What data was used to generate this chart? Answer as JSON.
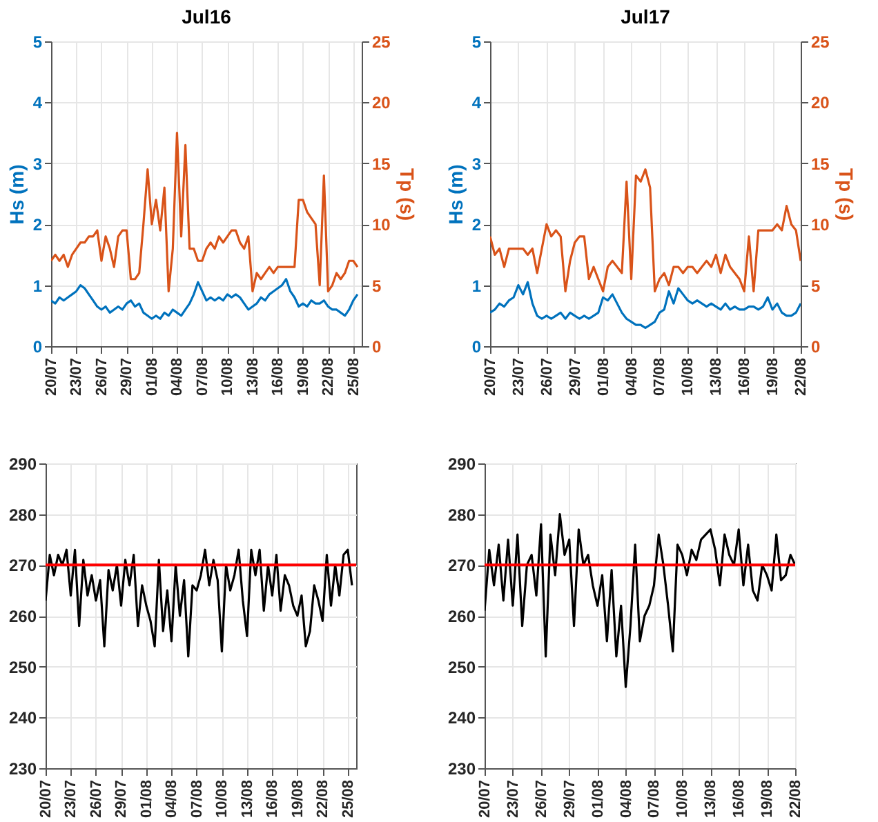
{
  "chart_data": [
    {
      "type": "line",
      "title": "Jul16",
      "ylabel": "Hs (m)",
      "y2label": "Tp (s)",
      "grid": true,
      "x": [
        "--07-20T00:00",
        "--07-20T12:00",
        "--07-21T00:00",
        "--07-21T12:00",
        "--07-22T00:00",
        "--07-22T12:00",
        "--07-23T00:00",
        "--07-23T12:00",
        "--07-24T00:00",
        "--07-24T12:00",
        "--07-25T00:00",
        "--07-25T12:00",
        "--07-26T00:00",
        "--07-26T12:00",
        "--07-27T00:00",
        "--07-27T12:00",
        "--07-28T00:00",
        "--07-28T12:00",
        "--07-29T00:00",
        "--07-29T12:00",
        "--07-30T00:00",
        "--07-30T12:00",
        "--07-31T00:00",
        "--07-31T12:00",
        "--08-01T00:00",
        "--08-01T12:00",
        "--08-02T00:00",
        "--08-02T12:00",
        "--08-03T00:00",
        "--08-03T12:00",
        "--08-04T00:00",
        "--08-04T12:00",
        "--08-05T00:00",
        "--08-05T12:00",
        "--08-06T00:00",
        "--08-06T12:00",
        "--08-07T00:00",
        "--08-07T12:00",
        "--08-08T00:00",
        "--08-08T12:00",
        "--08-09T00:00",
        "--08-09T12:00",
        "--08-10T00:00",
        "--08-10T12:00",
        "--08-11T00:00",
        "--08-11T12:00",
        "--08-12T00:00",
        "--08-12T12:00",
        "--08-13T00:00",
        "--08-13T12:00",
        "--08-14T00:00",
        "--08-14T12:00",
        "--08-15T00:00",
        "--08-15T12:00",
        "--08-16T00:00",
        "--08-16T12:00",
        "--08-17T00:00",
        "--08-17T12:00",
        "--08-18T00:00",
        "--08-18T12:00",
        "--08-19T00:00",
        "--08-19T12:00",
        "--08-20T00:00",
        "--08-20T12:00",
        "--08-21T00:00",
        "--08-21T12:00",
        "--08-22T00:00",
        "--08-22T12:00",
        "--08-23T00:00",
        "--08-23T12:00",
        "--08-24T00:00",
        "--08-24T12:00",
        "--08-25T00:00",
        "--08-25T12:00"
      ],
      "xlim": [
        "--07-20",
        "--08-26"
      ],
      "xticks": [
        {
          "value": "--07-20",
          "label": "20/07"
        },
        {
          "value": "--07-23",
          "label": "23/07"
        },
        {
          "value": "--07-26",
          "label": "26/07"
        },
        {
          "value": "--07-29",
          "label": "29/07"
        },
        {
          "value": "--08-01",
          "label": "01/08"
        },
        {
          "value": "--08-04",
          "label": "04/08"
        },
        {
          "value": "--08-07",
          "label": "07/08"
        },
        {
          "value": "--08-10",
          "label": "10/08"
        },
        {
          "value": "--08-13",
          "label": "13/08"
        },
        {
          "value": "--08-16",
          "label": "16/08"
        },
        {
          "value": "--08-19",
          "label": "19/08"
        },
        {
          "value": "--08-22",
          "label": "22/08"
        },
        {
          "value": "--08-25",
          "label": "25/08"
        }
      ],
      "ylim": [
        0,
        5
      ],
      "yticks": [
        0,
        1,
        2,
        3,
        4,
        5
      ],
      "y2lim": [
        0,
        25
      ],
      "y2ticks": [
        0,
        5,
        10,
        15,
        20,
        25
      ],
      "series": [
        {
          "color": "#0072bd",
          "values": [
            0.75,
            0.7,
            0.8,
            0.75,
            0.8,
            0.85,
            0.9,
            1.0,
            0.95,
            0.85,
            0.75,
            0.65,
            0.6,
            0.65,
            0.55,
            0.6,
            0.65,
            0.6,
            0.7,
            0.75,
            0.65,
            0.7,
            0.55,
            0.5,
            0.45,
            0.5,
            0.45,
            0.55,
            0.5,
            0.6,
            0.55,
            0.5,
            0.6,
            0.7,
            0.85,
            1.05,
            0.9,
            0.75,
            0.8,
            0.75,
            0.8,
            0.75,
            0.85,
            0.8,
            0.85,
            0.8,
            0.7,
            0.6,
            0.65,
            0.7,
            0.8,
            0.75,
            0.85,
            0.9,
            0.95,
            1.0,
            1.1,
            0.9,
            0.8,
            0.65,
            0.7,
            0.65,
            0.75,
            0.7,
            0.7,
            0.75,
            0.65,
            0.6,
            0.6,
            0.55,
            0.5,
            0.6,
            0.75,
            0.85
          ]
        },
        {
          "color": "#d95319",
          "axis": "y2",
          "values": [
            7,
            7.5,
            7,
            7.5,
            6.5,
            7.5,
            8,
            8.5,
            8.5,
            9,
            9,
            9.5,
            7,
            9,
            8,
            6.5,
            9,
            9.5,
            9.5,
            5.5,
            5.5,
            6,
            10,
            14.5,
            10,
            12,
            9.5,
            13,
            4.5,
            8,
            17.5,
            9,
            16.5,
            8,
            8,
            7,
            7,
            8,
            8.5,
            8,
            9,
            8.5,
            9,
            9.5,
            9.5,
            8.5,
            8,
            9,
            4.5,
            6,
            5.5,
            6,
            6.5,
            6,
            6.5,
            6.5,
            6.5,
            6.5,
            6.5,
            12,
            12,
            11,
            10.5,
            10,
            5,
            14,
            4.5,
            5,
            6,
            5.5,
            6,
            7,
            7,
            6.5
          ]
        }
      ]
    },
    {
      "type": "line",
      "title": "Jul17",
      "ylabel": "Hs (m)",
      "y2label": "Tp (s)",
      "grid": true,
      "x": [
        "--07-20T00:00",
        "--07-20T12:00",
        "--07-21T00:00",
        "--07-21T12:00",
        "--07-22T00:00",
        "--07-22T12:00",
        "--07-23T00:00",
        "--07-23T12:00",
        "--07-24T00:00",
        "--07-24T12:00",
        "--07-25T00:00",
        "--07-25T12:00",
        "--07-26T00:00",
        "--07-26T12:00",
        "--07-27T00:00",
        "--07-27T12:00",
        "--07-28T00:00",
        "--07-28T12:00",
        "--07-29T00:00",
        "--07-29T12:00",
        "--07-30T00:00",
        "--07-30T12:00",
        "--07-31T00:00",
        "--07-31T12:00",
        "--08-01T00:00",
        "--08-01T12:00",
        "--08-02T00:00",
        "--08-02T12:00",
        "--08-03T00:00",
        "--08-03T12:00",
        "--08-04T00:00",
        "--08-04T12:00",
        "--08-05T00:00",
        "--08-05T12:00",
        "--08-06T00:00",
        "--08-06T12:00",
        "--08-07T00:00",
        "--08-07T12:00",
        "--08-08T00:00",
        "--08-08T12:00",
        "--08-09T00:00",
        "--08-09T12:00",
        "--08-10T00:00",
        "--08-10T12:00",
        "--08-11T00:00",
        "--08-11T12:00",
        "--08-12T00:00",
        "--08-12T12:00",
        "--08-13T00:00",
        "--08-13T12:00",
        "--08-14T00:00",
        "--08-14T12:00",
        "--08-15T00:00",
        "--08-15T12:00",
        "--08-16T00:00",
        "--08-16T12:00",
        "--08-17T00:00",
        "--08-17T12:00",
        "--08-18T00:00",
        "--08-18T12:00",
        "--08-19T00:00",
        "--08-19T12:00",
        "--08-20T00:00",
        "--08-20T12:00",
        "--08-21T00:00",
        "--08-21T12:00",
        "--08-22T00:00"
      ],
      "xlim": [
        "--07-20",
        "--08-22"
      ],
      "xticks": [
        {
          "value": "--07-20",
          "label": "20/07"
        },
        {
          "value": "--07-23",
          "label": "23/07"
        },
        {
          "value": "--07-26",
          "label": "26/07"
        },
        {
          "value": "--07-29",
          "label": "29/07"
        },
        {
          "value": "--08-01",
          "label": "01/08"
        },
        {
          "value": "--08-04",
          "label": "04/08"
        },
        {
          "value": "--08-07",
          "label": "07/08"
        },
        {
          "value": "--08-10",
          "label": "10/08"
        },
        {
          "value": "--08-13",
          "label": "13/08"
        },
        {
          "value": "--08-16",
          "label": "16/08"
        },
        {
          "value": "--08-19",
          "label": "19/08"
        },
        {
          "value": "--08-22",
          "label": "22/08"
        }
      ],
      "ylim": [
        0,
        5
      ],
      "yticks": [
        0,
        1,
        2,
        3,
        4,
        5
      ],
      "y2lim": [
        0,
        25
      ],
      "y2ticks": [
        0,
        5,
        10,
        15,
        20,
        25
      ],
      "series": [
        {
          "color": "#0072bd",
          "values": [
            0.55,
            0.6,
            0.7,
            0.65,
            0.75,
            0.8,
            1.0,
            0.85,
            1.05,
            0.7,
            0.5,
            0.45,
            0.5,
            0.45,
            0.5,
            0.55,
            0.45,
            0.55,
            0.5,
            0.45,
            0.5,
            0.45,
            0.5,
            0.55,
            0.8,
            0.75,
            0.85,
            0.7,
            0.55,
            0.45,
            0.4,
            0.35,
            0.35,
            0.3,
            0.35,
            0.4,
            0.55,
            0.6,
            0.9,
            0.7,
            0.95,
            0.85,
            0.75,
            0.7,
            0.75,
            0.7,
            0.65,
            0.7,
            0.65,
            0.6,
            0.7,
            0.6,
            0.65,
            0.6,
            0.6,
            0.65,
            0.65,
            0.6,
            0.65,
            0.8,
            0.6,
            0.7,
            0.55,
            0.5,
            0.5,
            0.55,
            0.7
          ]
        },
        {
          "color": "#d95319",
          "axis": "y2",
          "values": [
            9,
            7.5,
            8,
            6.5,
            8,
            8,
            8,
            8,
            7.5,
            8,
            6,
            8,
            10,
            9,
            9.5,
            9,
            4.5,
            7,
            8.5,
            9,
            9,
            5.5,
            6.5,
            5.5,
            4.5,
            6.5,
            7,
            6.5,
            6,
            13.5,
            5.5,
            14,
            13.5,
            14.5,
            13,
            4.5,
            5.5,
            6,
            5,
            6.5,
            6.5,
            6,
            6.5,
            6.5,
            6,
            6.5,
            7,
            6.5,
            7.5,
            6,
            7.5,
            6.5,
            6,
            5.5,
            4.5,
            9,
            4.5,
            9.5,
            9.5,
            9.5,
            9.5,
            10,
            9.5,
            11.5,
            10,
            9.5,
            7
          ]
        }
      ]
    },
    {
      "type": "line",
      "grid": true,
      "x": [
        "--07-20T00:00",
        "--07-20T12:00",
        "--07-21T00:00",
        "--07-21T12:00",
        "--07-22T00:00",
        "--07-22T12:00",
        "--07-23T00:00",
        "--07-23T12:00",
        "--07-24T00:00",
        "--07-24T12:00",
        "--07-25T00:00",
        "--07-25T12:00",
        "--07-26T00:00",
        "--07-26T12:00",
        "--07-27T00:00",
        "--07-27T12:00",
        "--07-28T00:00",
        "--07-28T12:00",
        "--07-29T00:00",
        "--07-29T12:00",
        "--07-30T00:00",
        "--07-30T12:00",
        "--07-31T00:00",
        "--07-31T12:00",
        "--08-01T00:00",
        "--08-01T12:00",
        "--08-02T00:00",
        "--08-02T12:00",
        "--08-03T00:00",
        "--08-03T12:00",
        "--08-04T00:00",
        "--08-04T12:00",
        "--08-05T00:00",
        "--08-05T12:00",
        "--08-06T00:00",
        "--08-06T12:00",
        "--08-07T00:00",
        "--08-07T12:00",
        "--08-08T00:00",
        "--08-08T12:00",
        "--08-09T00:00",
        "--08-09T12:00",
        "--08-10T00:00",
        "--08-10T12:00",
        "--08-11T00:00",
        "--08-11T12:00",
        "--08-12T00:00",
        "--08-12T12:00",
        "--08-13T00:00",
        "--08-13T12:00",
        "--08-14T00:00",
        "--08-14T12:00",
        "--08-15T00:00",
        "--08-15T12:00",
        "--08-16T00:00",
        "--08-16T12:00",
        "--08-17T00:00",
        "--08-17T12:00",
        "--08-18T00:00",
        "--08-18T12:00",
        "--08-19T00:00",
        "--08-19T12:00",
        "--08-20T00:00",
        "--08-20T12:00",
        "--08-21T00:00",
        "--08-21T12:00",
        "--08-22T00:00",
        "--08-22T12:00",
        "--08-23T00:00",
        "--08-23T12:00",
        "--08-24T00:00",
        "--08-24T12:00",
        "--08-25T00:00",
        "--08-25T12:00"
      ],
      "xlim": [
        "--07-20",
        "--08-26"
      ],
      "xticks": [
        {
          "value": "--07-20",
          "label": "20/07"
        },
        {
          "value": "--07-23",
          "label": "23/07"
        },
        {
          "value": "--07-26",
          "label": "26/07"
        },
        {
          "value": "--07-29",
          "label": "29/07"
        },
        {
          "value": "--08-01",
          "label": "01/08"
        },
        {
          "value": "--08-04",
          "label": "04/08"
        },
        {
          "value": "--08-07",
          "label": "07/08"
        },
        {
          "value": "--08-10",
          "label": "10/08"
        },
        {
          "value": "--08-13",
          "label": "13/08"
        },
        {
          "value": "--08-16",
          "label": "16/08"
        },
        {
          "value": "--08-19",
          "label": "19/08"
        },
        {
          "value": "--08-22",
          "label": "22/08"
        },
        {
          "value": "--08-25",
          "label": "25/08"
        }
      ],
      "ylim": [
        230,
        290
      ],
      "yticks": [
        230,
        240,
        250,
        260,
        270,
        280,
        290
      ],
      "ref_lines": [
        {
          "axis": "y",
          "value": 270,
          "color": "#ff0000"
        }
      ],
      "series": [
        {
          "color": "#000000",
          "values": [
            263,
            272,
            268,
            272,
            270,
            273,
            264,
            273,
            258,
            271,
            264,
            268,
            263,
            267,
            254,
            269,
            265,
            270,
            262,
            271,
            266,
            272,
            258,
            266,
            262,
            259,
            254,
            271,
            257,
            265,
            255,
            270,
            260,
            267,
            252,
            266,
            265,
            268,
            273,
            266,
            271,
            267,
            253,
            270,
            265,
            268,
            273,
            263,
            256,
            273,
            268,
            273,
            261,
            270,
            264,
            272,
            261,
            268,
            266,
            262,
            260,
            264,
            254,
            257,
            266,
            263,
            259,
            272,
            262,
            270,
            264,
            272,
            273,
            266
          ]
        }
      ]
    },
    {
      "type": "line",
      "grid": true,
      "x": [
        "--07-20T00:00",
        "--07-20T12:00",
        "--07-21T00:00",
        "--07-21T12:00",
        "--07-22T00:00",
        "--07-22T12:00",
        "--07-23T00:00",
        "--07-23T12:00",
        "--07-24T00:00",
        "--07-24T12:00",
        "--07-25T00:00",
        "--07-25T12:00",
        "--07-26T00:00",
        "--07-26T12:00",
        "--07-27T00:00",
        "--07-27T12:00",
        "--07-28T00:00",
        "--07-28T12:00",
        "--07-29T00:00",
        "--07-29T12:00",
        "--07-30T00:00",
        "--07-30T12:00",
        "--07-31T00:00",
        "--07-31T12:00",
        "--08-01T00:00",
        "--08-01T12:00",
        "--08-02T00:00",
        "--08-02T12:00",
        "--08-03T00:00",
        "--08-03T12:00",
        "--08-04T00:00",
        "--08-04T12:00",
        "--08-05T00:00",
        "--08-05T12:00",
        "--08-06T00:00",
        "--08-06T12:00",
        "--08-07T00:00",
        "--08-07T12:00",
        "--08-08T00:00",
        "--08-08T12:00",
        "--08-09T00:00",
        "--08-09T12:00",
        "--08-10T00:00",
        "--08-10T12:00",
        "--08-11T00:00",
        "--08-11T12:00",
        "--08-12T00:00",
        "--08-12T12:00",
        "--08-13T00:00",
        "--08-13T12:00",
        "--08-14T00:00",
        "--08-14T12:00",
        "--08-15T00:00",
        "--08-15T12:00",
        "--08-16T00:00",
        "--08-16T12:00",
        "--08-17T00:00",
        "--08-17T12:00",
        "--08-18T00:00",
        "--08-18T12:00",
        "--08-19T00:00",
        "--08-19T12:00",
        "--08-20T00:00",
        "--08-20T12:00",
        "--08-21T00:00",
        "--08-21T12:00",
        "--08-22T00:00"
      ],
      "xlim": [
        "--07-20",
        "--08-22"
      ],
      "xticks": [
        {
          "value": "--07-20",
          "label": "20/07"
        },
        {
          "value": "--07-23",
          "label": "23/07"
        },
        {
          "value": "--07-26",
          "label": "26/07"
        },
        {
          "value": "--07-29",
          "label": "29/07"
        },
        {
          "value": "--08-01",
          "label": "01/08"
        },
        {
          "value": "--08-04",
          "label": "04/08"
        },
        {
          "value": "--08-07",
          "label": "07/08"
        },
        {
          "value": "--08-10",
          "label": "10/08"
        },
        {
          "value": "--08-13",
          "label": "13/08"
        },
        {
          "value": "--08-16",
          "label": "16/08"
        },
        {
          "value": "--08-19",
          "label": "19/08"
        },
        {
          "value": "--08-22",
          "label": "22/08"
        }
      ],
      "ylim": [
        230,
        290
      ],
      "yticks": [
        230,
        240,
        250,
        260,
        270,
        280,
        290
      ],
      "ref_lines": [
        {
          "axis": "y",
          "value": 270,
          "color": "#ff0000"
        }
      ],
      "series": [
        {
          "color": "#000000",
          "values": [
            261,
            273,
            266,
            274,
            263,
            275,
            262,
            276,
            258,
            270,
            272,
            264,
            278,
            252,
            276,
            268,
            280,
            272,
            275,
            258,
            277,
            270,
            272,
            266,
            262,
            268,
            255,
            269,
            252,
            262,
            246,
            258,
            274,
            255,
            260,
            262,
            266,
            276,
            270,
            262,
            253,
            274,
            272,
            268,
            273,
            271,
            275,
            276,
            277,
            273,
            266,
            276,
            272,
            270,
            277,
            266,
            274,
            265,
            263,
            270,
            268,
            265,
            276,
            267,
            268,
            272,
            270
          ]
        }
      ]
    }
  ]
}
